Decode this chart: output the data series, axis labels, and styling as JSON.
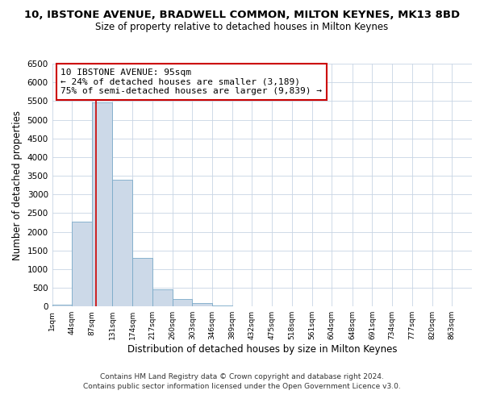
{
  "title": "10, IBSTONE AVENUE, BRADWELL COMMON, MILTON KEYNES, MK13 8BD",
  "subtitle": "Size of property relative to detached houses in Milton Keynes",
  "xlabel": "Distribution of detached houses by size in Milton Keynes",
  "ylabel": "Number of detached properties",
  "bar_color": "#ccd9e8",
  "bar_edge_color": "#7aaac8",
  "bar_left_edges": [
    1,
    44,
    87,
    131,
    174,
    217,
    260,
    303,
    346,
    389,
    432,
    475,
    518,
    561,
    604,
    648,
    691,
    734,
    777,
    820
  ],
  "bar_heights": [
    55,
    2280,
    5460,
    3390,
    1300,
    465,
    190,
    90,
    30,
    10,
    4,
    2,
    1,
    0,
    0,
    0,
    0,
    0,
    0,
    0
  ],
  "bin_width": 43,
  "x_tick_labels": [
    "1sqm",
    "44sqm",
    "87sqm",
    "131sqm",
    "174sqm",
    "217sqm",
    "260sqm",
    "303sqm",
    "346sqm",
    "389sqm",
    "432sqm",
    "475sqm",
    "518sqm",
    "561sqm",
    "604sqm",
    "648sqm",
    "691sqm",
    "734sqm",
    "777sqm",
    "820sqm",
    "863sqm"
  ],
  "x_tick_positions": [
    1,
    44,
    87,
    131,
    174,
    217,
    260,
    303,
    346,
    389,
    432,
    475,
    518,
    561,
    604,
    648,
    691,
    734,
    777,
    820,
    863
  ],
  "ylim": [
    0,
    6500
  ],
  "yticks": [
    0,
    500,
    1000,
    1500,
    2000,
    2500,
    3000,
    3500,
    4000,
    4500,
    5000,
    5500,
    6000,
    6500
  ],
  "property_size": 95,
  "vline_color": "#cc0000",
  "annotation_text": "10 IBSTONE AVENUE: 95sqm\n← 24% of detached houses are smaller (3,189)\n75% of semi-detached houses are larger (9,839) →",
  "annotation_box_edge": "#cc0000",
  "footer_line1": "Contains HM Land Registry data © Crown copyright and database right 2024.",
  "footer_line2": "Contains public sector information licensed under the Open Government Licence v3.0.",
  "bg_color": "#ffffff",
  "grid_color": "#c8d4e4"
}
